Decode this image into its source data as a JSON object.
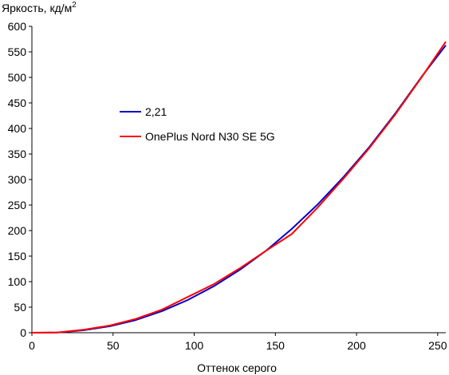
{
  "chart_data": {
    "type": "line",
    "title": "",
    "ylabel": "Яркость, кд/м",
    "ylabel_sup": "2",
    "xlabel": "Оттенок серого",
    "xlim": [
      0,
      255
    ],
    "ylim": [
      0,
      600
    ],
    "x_ticks": [
      "0",
      "50",
      "100",
      "150",
      "200",
      "250"
    ],
    "y_ticks": [
      "0",
      "50",
      "100",
      "150",
      "200",
      "250",
      "300",
      "350",
      "400",
      "450",
      "500",
      "550",
      "600"
    ],
    "grid": false,
    "legend_position": "center-left",
    "series": [
      {
        "name": "2,21",
        "color": "#0000cc",
        "points": [
          [
            0,
            0
          ],
          [
            16,
            0.4
          ],
          [
            32,
            4.9
          ],
          [
            48,
            12.7
          ],
          [
            64,
            24.9
          ],
          [
            80,
            42
          ],
          [
            96,
            64
          ],
          [
            112,
            91
          ],
          [
            128,
            123
          ],
          [
            144,
            160
          ],
          [
            160,
            203
          ],
          [
            176,
            251
          ],
          [
            192,
            305
          ],
          [
            208,
            364
          ],
          [
            224,
            430
          ],
          [
            240,
            501
          ],
          [
            255,
            563
          ]
        ]
      },
      {
        "name": "OnePlus Nord N30 SE 5G",
        "color": "#ff0000",
        "points": [
          [
            0,
            0
          ],
          [
            16,
            0.6
          ],
          [
            32,
            6
          ],
          [
            48,
            14
          ],
          [
            64,
            27
          ],
          [
            80,
            45
          ],
          [
            96,
            70
          ],
          [
            112,
            95
          ],
          [
            128,
            126
          ],
          [
            144,
            160
          ],
          [
            160,
            193
          ],
          [
            176,
            245
          ],
          [
            192,
            302
          ],
          [
            208,
            362
          ],
          [
            224,
            428
          ],
          [
            240,
            500
          ],
          [
            255,
            570
          ]
        ]
      }
    ]
  }
}
